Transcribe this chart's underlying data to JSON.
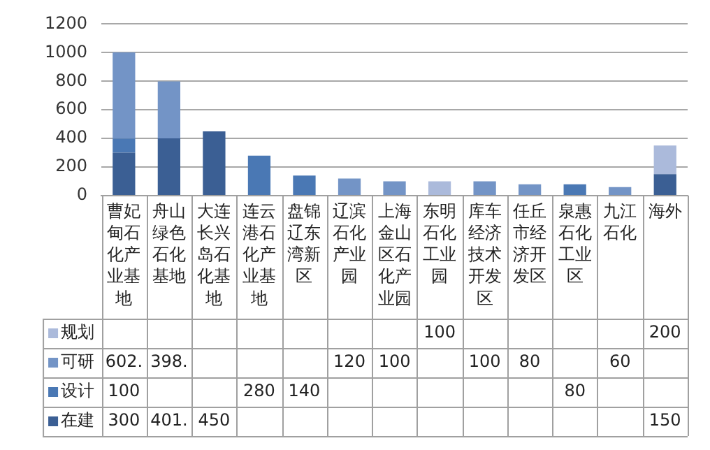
{
  "chart_data": {
    "type": "bar",
    "stacked": true,
    "categories": [
      "曹妃甸石化产业基地",
      "舟山绿色石化基地",
      "大连长兴岛石化基地",
      "连云港石化产业基地",
      "盘锦辽东湾新区",
      "辽滨石化产业园",
      "上海金山区石化产业园",
      "东明石化工业园",
      "库车经济技术开发区",
      "任丘市经济开发区",
      "泉惠石化工业区",
      "九江石化",
      "海外"
    ],
    "ylim": [
      0,
      1200
    ],
    "yticks": [
      0,
      200,
      400,
      600,
      800,
      1000,
      1200
    ],
    "grid": "y",
    "legend": "bottom",
    "series": [
      {
        "name": "在建",
        "color": "#3b5f94",
        "values": [
          300,
          401,
          450,
          null,
          null,
          null,
          null,
          null,
          null,
          null,
          null,
          null,
          150
        ],
        "value_labels": [
          "300",
          "401.",
          "450",
          null,
          null,
          null,
          null,
          null,
          null,
          null,
          null,
          null,
          "150"
        ]
      },
      {
        "name": "设计",
        "color": "#4a78b4",
        "values": [
          100,
          null,
          null,
          280,
          140,
          null,
          null,
          null,
          null,
          null,
          80,
          null,
          null
        ],
        "value_labels": [
          "100",
          null,
          null,
          "280",
          "140",
          null,
          null,
          null,
          null,
          null,
          "80",
          null,
          null
        ]
      },
      {
        "name": "可研",
        "color": "#7394c6",
        "values": [
          602,
          398,
          null,
          null,
          null,
          120,
          100,
          null,
          100,
          80,
          null,
          60,
          null
        ],
        "value_labels": [
          "602.",
          "398.",
          null,
          null,
          null,
          "120",
          "100",
          null,
          "100",
          "80",
          null,
          "60",
          null
        ]
      },
      {
        "name": "规划",
        "color": "#abbadb",
        "values": [
          null,
          null,
          null,
          null,
          null,
          null,
          null,
          100,
          null,
          null,
          null,
          null,
          200
        ],
        "value_labels": [
          null,
          null,
          null,
          null,
          null,
          null,
          null,
          "100",
          null,
          null,
          null,
          null,
          "200"
        ]
      }
    ]
  }
}
